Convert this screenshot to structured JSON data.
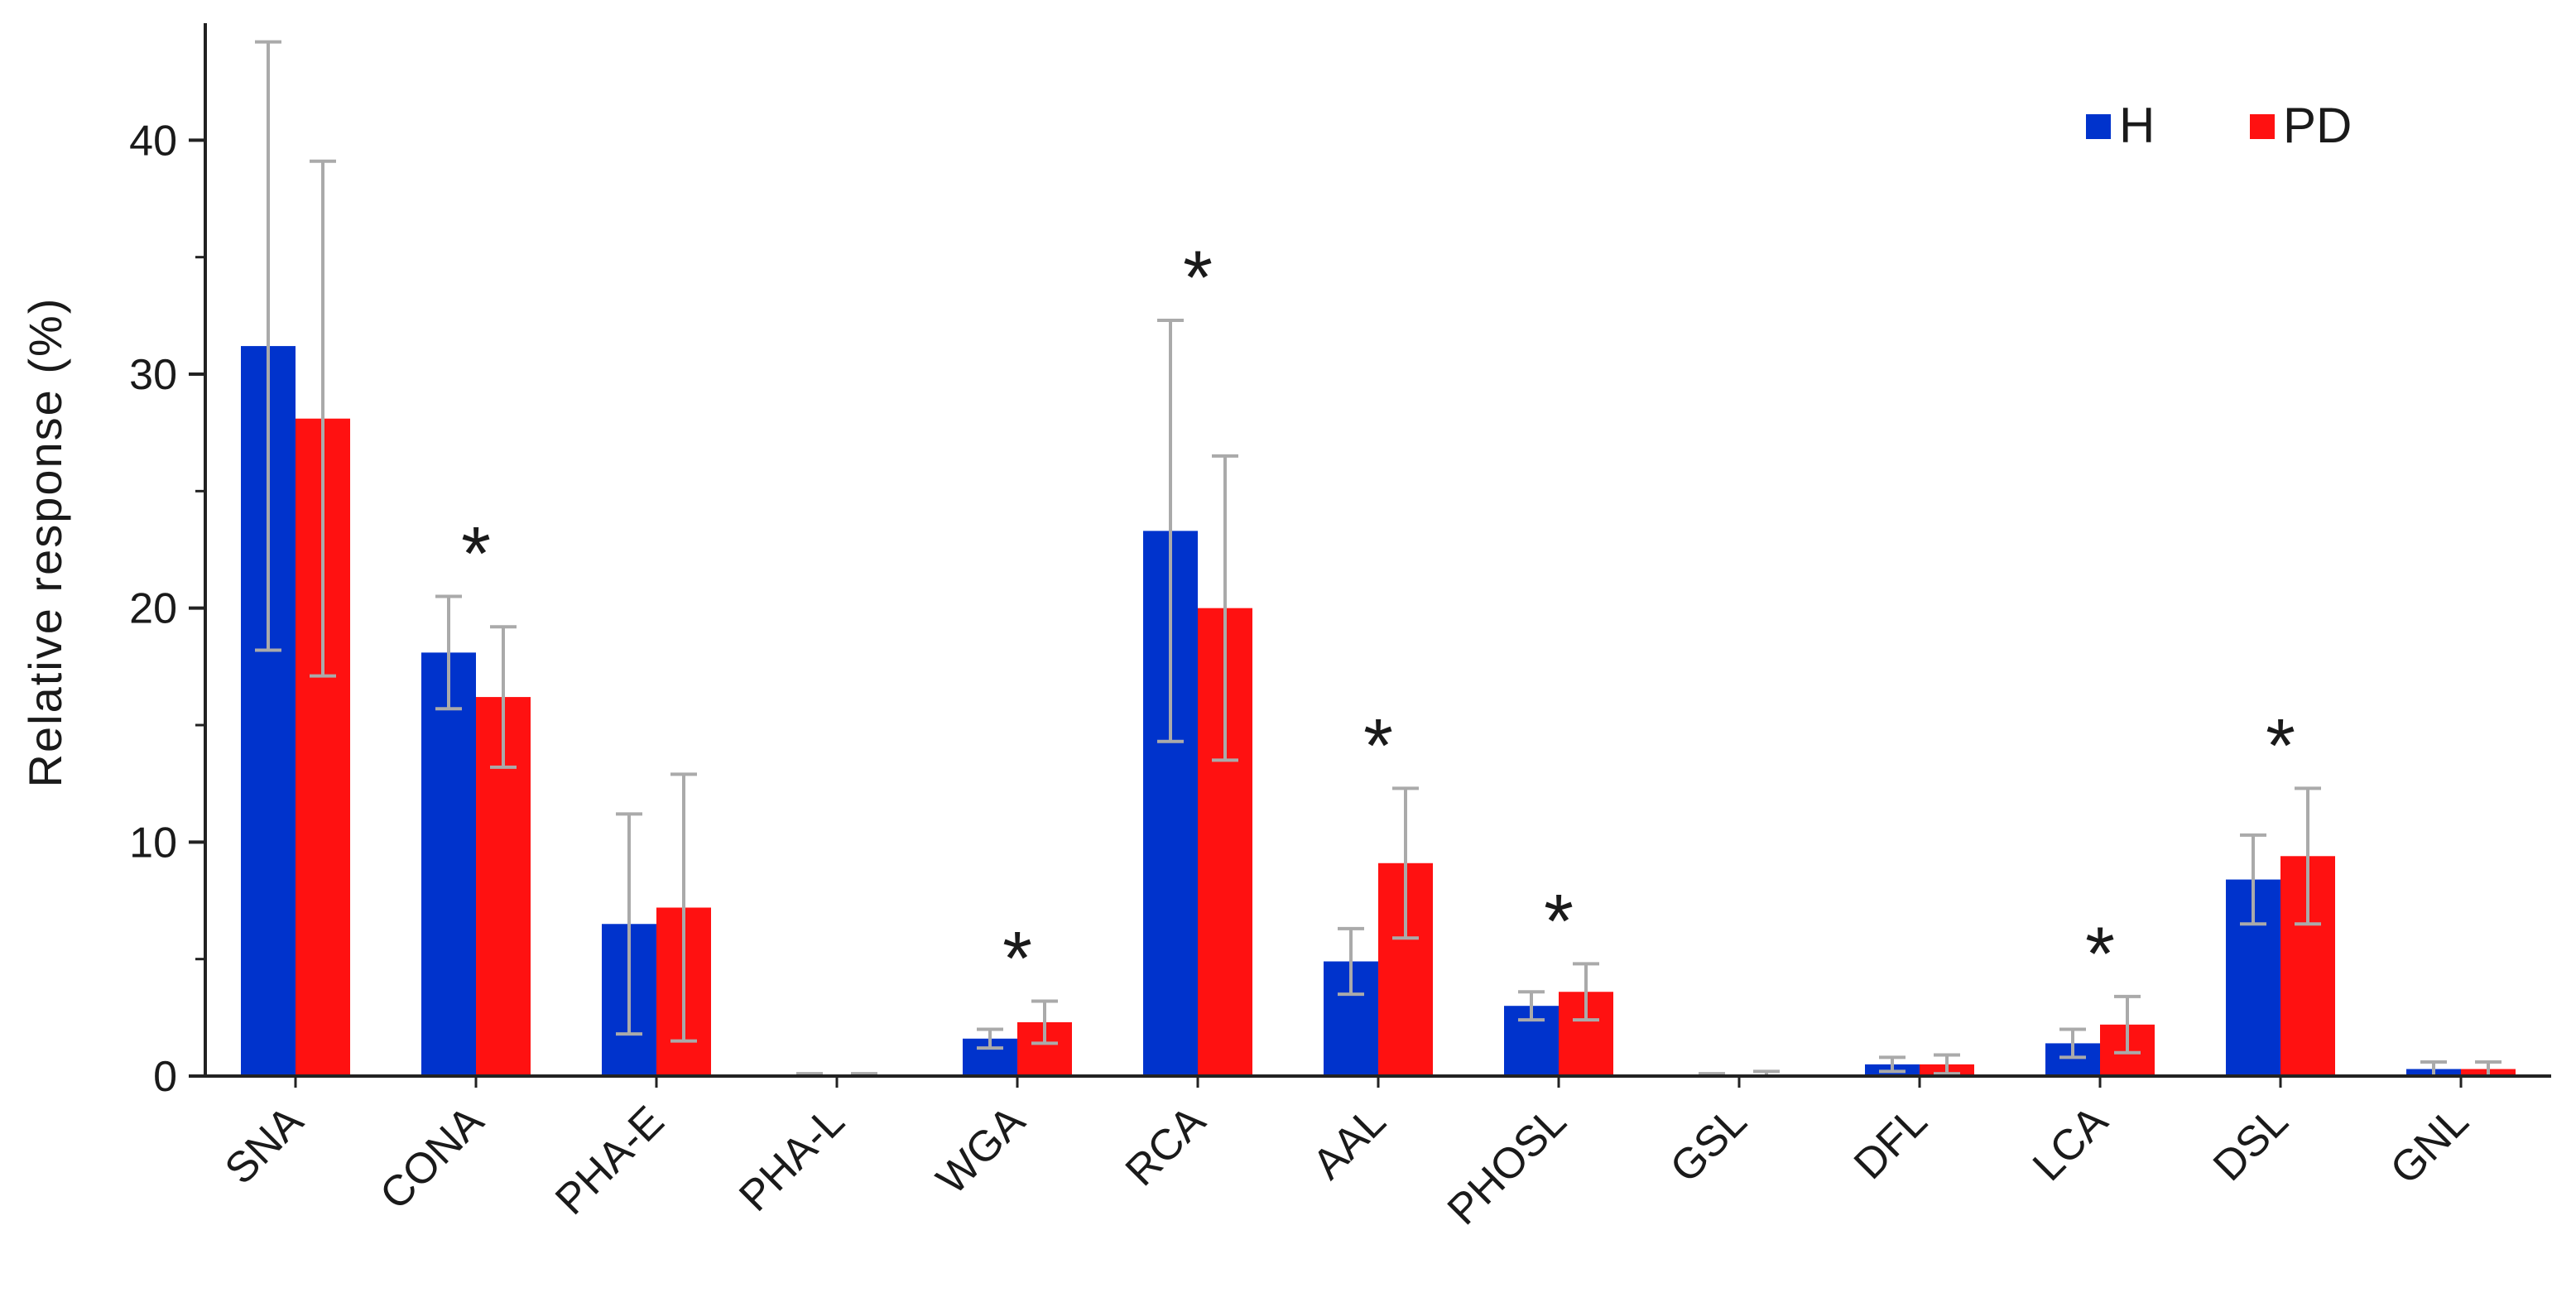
{
  "chart_data": {
    "type": "bar",
    "title": "",
    "xlabel": "",
    "ylabel": "Relative response (%)",
    "ylim": [
      0,
      45
    ],
    "yticks": [
      0,
      10,
      20,
      30,
      40
    ],
    "grid": false,
    "legend_position": "top-right",
    "categories": [
      "SNA",
      "CONA",
      "PHA-E",
      "PHA-L",
      "WGA",
      "RCA",
      "AAL",
      "PHOSL",
      "GSL",
      "DFL",
      "LCA",
      "DSL",
      "GNL"
    ],
    "series": [
      {
        "name": "H",
        "color": "#0033cc",
        "values": [
          31.2,
          18.1,
          6.5,
          0.0,
          1.6,
          23.3,
          4.9,
          3.0,
          0.0,
          0.5,
          1.4,
          8.4,
          0.3
        ],
        "errors": [
          13.0,
          2.4,
          4.7,
          0.1,
          0.4,
          9.0,
          1.4,
          0.6,
          0.1,
          0.3,
          0.6,
          1.9,
          0.3
        ]
      },
      {
        "name": "PD",
        "color": "#ff1111",
        "values": [
          28.1,
          16.2,
          7.2,
          0.0,
          2.3,
          20.0,
          9.1,
          3.6,
          0.0,
          0.5,
          2.2,
          9.4,
          0.3
        ],
        "errors": [
          11.0,
          3.0,
          5.7,
          0.1,
          0.9,
          6.5,
          3.2,
          1.2,
          0.2,
          0.4,
          1.2,
          2.9,
          0.3
        ]
      }
    ],
    "significant_marker": "*",
    "significant": [
      "CONA",
      "WGA",
      "RCA",
      "AAL",
      "PHOSL",
      "LCA",
      "DSL"
    ],
    "error_bar_color": "#aaaaaa"
  }
}
